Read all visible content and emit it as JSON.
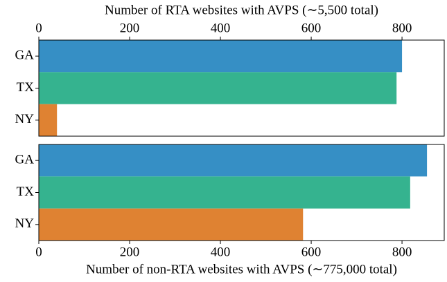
{
  "chart_data": [
    {
      "type": "barh",
      "xlabel": "Number of RTA websites with AVPS (∼5,500 total)",
      "xaxis_position": "top",
      "categories": [
        "GA",
        "TX",
        "NY"
      ],
      "values": [
        800,
        788,
        40
      ],
      "colors": [
        "#368fc5",
        "#35b38f",
        "#df8232"
      ],
      "xlim": [
        0,
        893
      ],
      "xticks": [
        0,
        200,
        400,
        600,
        800
      ]
    },
    {
      "type": "barh",
      "xlabel": "Number of non-RTA websites with AVPS (∼775,000 total)",
      "xaxis_position": "bottom",
      "categories": [
        "GA",
        "TX",
        "NY"
      ],
      "values": [
        855,
        818,
        582
      ],
      "colors": [
        "#368fc5",
        "#35b38f",
        "#df8232"
      ],
      "xlim": [
        0,
        893
      ],
      "xticks": [
        0,
        200,
        400,
        600,
        800
      ]
    }
  ]
}
